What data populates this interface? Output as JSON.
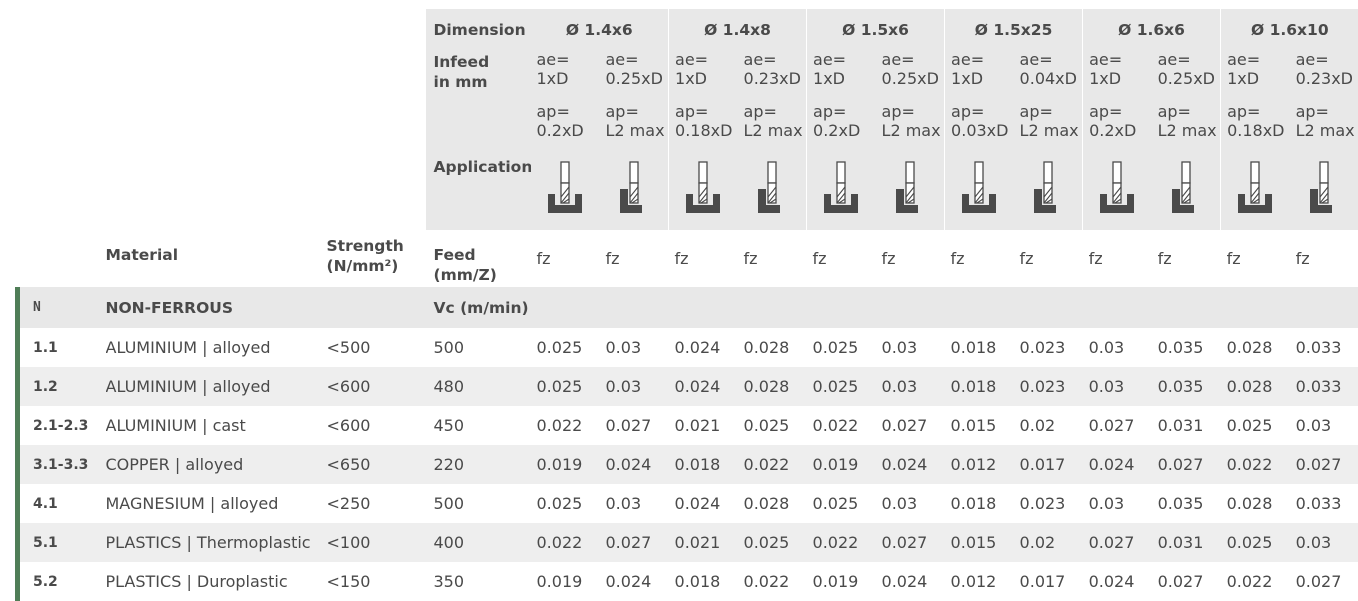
{
  "header": {
    "dimension_label": "Dimension",
    "infeed_label": "Infeed\nin mm",
    "application_label": "Application",
    "feed_label": "Feed\n(mm/Z)",
    "material_label": "Material",
    "strength_label": "Strength\n(N/mm²)",
    "fz_label": "fz",
    "dimensions": [
      {
        "name": "Ø 1.4x6",
        "ae": [
          "ae=\n1xD",
          "ae=\n0.25xD"
        ],
        "ap": [
          "ap=\n0.2xD",
          "ap=\nL2 max"
        ]
      },
      {
        "name": "Ø 1.4x8",
        "ae": [
          "ae=\n1xD",
          "ae=\n0.23xD"
        ],
        "ap": [
          "ap=\n0.18xD",
          "ap=\nL2 max"
        ]
      },
      {
        "name": "Ø 1.5x6",
        "ae": [
          "ae=\n1xD",
          "ae=\n0.25xD"
        ],
        "ap": [
          "ap=\n0.2xD",
          "ap=\nL2 max"
        ]
      },
      {
        "name": "Ø 1.5x25",
        "ae": [
          "ae=\n1xD",
          "ae=\n0.04xD"
        ],
        "ap": [
          "ap=\n0.03xD",
          "ap=\nL2 max"
        ]
      },
      {
        "name": "Ø 1.6x6",
        "ae": [
          "ae=\n1xD",
          "ae=\n0.25xD"
        ],
        "ap": [
          "ap=\n0.2xD",
          "ap=\nL2 max"
        ]
      },
      {
        "name": "Ø 1.6x10",
        "ae": [
          "ae=\n1xD",
          "ae=\n0.23xD"
        ],
        "ap": [
          "ap=\n0.18xD",
          "ap=\nL2 max"
        ]
      }
    ],
    "application_icons": [
      "slot-milling-icon",
      "side-milling-icon"
    ]
  },
  "group": {
    "code": "N",
    "name": "NON-FERROUS",
    "vc_label": "Vc (m/min)"
  },
  "rows": [
    {
      "code": "1.1",
      "material": "ALUMINIUM | alloyed",
      "strength": "<500",
      "vc": "500",
      "fz": [
        "0.025",
        "0.03",
        "0.024",
        "0.028",
        "0.025",
        "0.03",
        "0.018",
        "0.023",
        "0.03",
        "0.035",
        "0.028",
        "0.033"
      ]
    },
    {
      "code": "1.2",
      "material": "ALUMINIUM | alloyed",
      "strength": "<600",
      "vc": "480",
      "fz": [
        "0.025",
        "0.03",
        "0.024",
        "0.028",
        "0.025",
        "0.03",
        "0.018",
        "0.023",
        "0.03",
        "0.035",
        "0.028",
        "0.033"
      ]
    },
    {
      "code": "2.1-2.3",
      "material": "ALUMINIUM | cast",
      "strength": "<600",
      "vc": "450",
      "fz": [
        "0.022",
        "0.027",
        "0.021",
        "0.025",
        "0.022",
        "0.027",
        "0.015",
        "0.02",
        "0.027",
        "0.031",
        "0.025",
        "0.03"
      ]
    },
    {
      "code": "3.1-3.3",
      "material": "COPPER | alloyed",
      "strength": "<650",
      "vc": "220",
      "fz": [
        "0.019",
        "0.024",
        "0.018",
        "0.022",
        "0.019",
        "0.024",
        "0.012",
        "0.017",
        "0.024",
        "0.027",
        "0.022",
        "0.027"
      ]
    },
    {
      "code": "4.1",
      "material": "MAGNESIUM | alloyed",
      "strength": "<250",
      "vc": "500",
      "fz": [
        "0.025",
        "0.03",
        "0.024",
        "0.028",
        "0.025",
        "0.03",
        "0.018",
        "0.023",
        "0.03",
        "0.035",
        "0.028",
        "0.033"
      ]
    },
    {
      "code": "5.1",
      "material": "PLASTICS | Thermoplastic",
      "strength": "<100",
      "vc": "400",
      "fz": [
        "0.022",
        "0.027",
        "0.021",
        "0.025",
        "0.022",
        "0.027",
        "0.015",
        "0.02",
        "0.027",
        "0.031",
        "0.025",
        "0.03"
      ]
    },
    {
      "code": "5.2",
      "material": "PLASTICS | Duroplastic",
      "strength": "<150",
      "vc": "350",
      "fz": [
        "0.019",
        "0.024",
        "0.018",
        "0.022",
        "0.019",
        "0.024",
        "0.012",
        "0.017",
        "0.024",
        "0.027",
        "0.022",
        "0.027"
      ]
    }
  ],
  "colors": {
    "accent": "#4f7d57",
    "header_bg": "#e8e8e8",
    "row_alt_bg": "#eeeeee",
    "text": "#4a4a4a"
  }
}
